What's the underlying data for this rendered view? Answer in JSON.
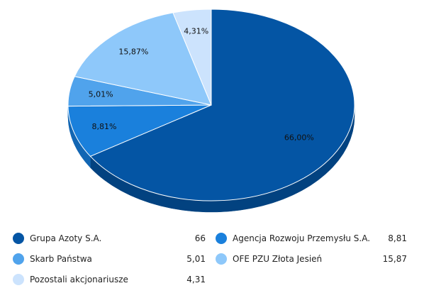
{
  "chart_data": {
    "type": "pie",
    "title": "",
    "three_d": true,
    "slices": [
      {
        "name": "Grupa Azoty S.A.",
        "value": 66,
        "legend_value": "66",
        "label": "66,00%",
        "color": "#0455a4",
        "side_color": "#024280"
      },
      {
        "name": "Agencja Rozwoju Przemysłu S.A.",
        "value": 8.81,
        "legend_value": "8,81",
        "label": "8,81%",
        "color": "#1a80dc",
        "side_color": "#1266b3"
      },
      {
        "name": "Skarb Państwa",
        "value": 5.01,
        "legend_value": "5,01",
        "label": "5,01%",
        "color": "#50a3ec",
        "side_color": "#3a86cc"
      },
      {
        "name": "OFE PZU Złota Jesień",
        "value": 15.87,
        "legend_value": "15,87",
        "label": "15,87%",
        "color": "#8ec8fa",
        "side_color": "#6aa9df"
      },
      {
        "name": "Pozostali akcjonariusze",
        "value": 4.31,
        "legend_value": "4,31",
        "label": "4,31%",
        "color": "#cce3fd",
        "side_color": "#a6c6e8"
      }
    ],
    "legend_placement": "bottom"
  }
}
